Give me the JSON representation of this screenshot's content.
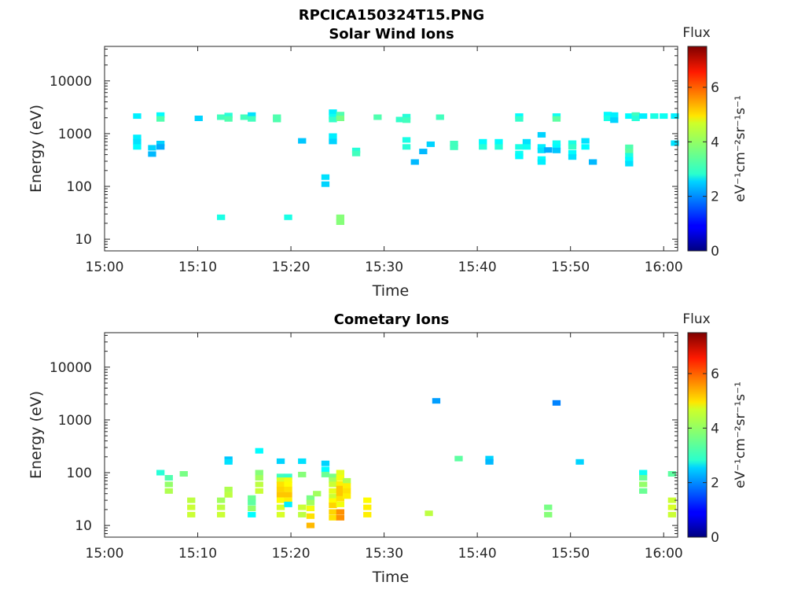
{
  "chart_data": {
    "figure_title": "RPCICA150324T15.PNG",
    "colormap": "jet",
    "panels": [
      {
        "type": "heatmap",
        "title": "Solar Wind Ions",
        "xlabel": "Time",
        "ylabel": "Energy (eV)",
        "x_unit": "minutes after 15:00",
        "xlim": [
          0,
          61.5
        ],
        "ylim": [
          6,
          45000
        ],
        "y_scale": "log",
        "xticks": [
          0,
          10,
          20,
          30,
          40,
          50,
          60
        ],
        "xtick_labels": [
          "15:00",
          "15:10",
          "15:20",
          "15:30",
          "15:40",
          "15:50",
          "16:00"
        ],
        "yticks": [
          10,
          100,
          1000,
          10000
        ],
        "ytick_labels": [
          "10",
          "100",
          "1000",
          "10000"
        ],
        "colorbar": {
          "title": "Flux",
          "label": "eV⁻¹cm⁻²sr⁻¹s⁻¹",
          "range": [
            0,
            7.5
          ],
          "ticks": [
            0,
            2,
            4,
            6
          ],
          "tick_labels": [
            "0",
            "2",
            "4",
            "6"
          ]
        },
        "cells": [
          [
            3.5,
            2150,
            2.7
          ],
          [
            3.5,
            850,
            2.7
          ],
          [
            3.5,
            700,
            2.6
          ],
          [
            3.5,
            560,
            2.8
          ],
          [
            5.1,
            540,
            2.5
          ],
          [
            5.1,
            410,
            2.3
          ],
          [
            6.0,
            2250,
            2.8
          ],
          [
            6.0,
            1900,
            3.4
          ],
          [
            6.0,
            650,
            2.5
          ],
          [
            6.0,
            560,
            2.2
          ],
          [
            10.1,
            1950,
            2.5
          ],
          [
            12.5,
            2050,
            3.3
          ],
          [
            13.3,
            2200,
            3.1
          ],
          [
            13.3,
            1900,
            3.4
          ],
          [
            12.5,
            26,
            3.0
          ],
          [
            15.0,
            2050,
            3.3
          ],
          [
            15.8,
            2250,
            2.6
          ],
          [
            15.8,
            1900,
            3.3
          ],
          [
            18.5,
            2050,
            3.4
          ],
          [
            18.5,
            1850,
            3.4
          ],
          [
            19.7,
            26,
            3.0
          ],
          [
            21.2,
            730,
            2.4
          ],
          [
            23.7,
            150,
            2.6
          ],
          [
            23.7,
            110,
            2.5
          ],
          [
            24.5,
            2550,
            2.7
          ],
          [
            24.5,
            2100,
            2.9
          ],
          [
            24.5,
            1850,
            3.2
          ],
          [
            24.5,
            900,
            2.7
          ],
          [
            24.5,
            710,
            2.5
          ],
          [
            25.3,
            2300,
            3.4
          ],
          [
            25.3,
            1950,
            3.7
          ],
          [
            25.3,
            26,
            3.8
          ],
          [
            25.3,
            21,
            3.8
          ],
          [
            27.0,
            480,
            3.1
          ],
          [
            27.0,
            420,
            3.3
          ],
          [
            29.3,
            2050,
            3.4
          ],
          [
            31.7,
            1850,
            3.2
          ],
          [
            32.4,
            2100,
            3.1
          ],
          [
            32.4,
            1800,
            3.3
          ],
          [
            32.4,
            760,
            3.0
          ],
          [
            32.4,
            560,
            3.1
          ],
          [
            33.3,
            290,
            2.3
          ],
          [
            34.2,
            460,
            2.3
          ],
          [
            35.0,
            630,
            2.5
          ],
          [
            36.0,
            2050,
            3.3
          ],
          [
            37.5,
            650,
            3.3
          ],
          [
            37.5,
            550,
            3.3
          ],
          [
            40.6,
            700,
            2.8
          ],
          [
            40.6,
            560,
            3.1
          ],
          [
            42.3,
            700,
            2.8
          ],
          [
            42.3,
            560,
            3.1
          ],
          [
            44.5,
            2150,
            2.8
          ],
          [
            44.5,
            1900,
            3.2
          ],
          [
            44.5,
            560,
            3.0
          ],
          [
            44.5,
            420,
            2.9
          ],
          [
            44.5,
            370,
            2.8
          ],
          [
            45.3,
            700,
            2.6
          ],
          [
            45.3,
            560,
            2.9
          ],
          [
            46.9,
            950,
            2.5
          ],
          [
            46.9,
            560,
            2.7
          ],
          [
            46.9,
            480,
            2.6
          ],
          [
            46.9,
            330,
            2.8
          ],
          [
            46.9,
            290,
            2.7
          ],
          [
            47.6,
            490,
            2.2
          ],
          [
            48.5,
            2150,
            2.9
          ],
          [
            48.5,
            1900,
            3.5
          ],
          [
            48.5,
            660,
            2.9
          ],
          [
            48.5,
            560,
            2.8
          ],
          [
            48.5,
            480,
            2.4
          ],
          [
            50.2,
            660,
            3.0
          ],
          [
            50.2,
            560,
            3.2
          ],
          [
            50.2,
            430,
            2.8
          ],
          [
            50.2,
            360,
            2.6
          ],
          [
            51.6,
            730,
            2.6
          ],
          [
            51.6,
            560,
            2.8
          ],
          [
            52.4,
            290,
            2.3
          ],
          [
            54.0,
            2300,
            2.8
          ],
          [
            54.0,
            1950,
            3.0
          ],
          [
            54.7,
            2250,
            2.7
          ],
          [
            54.7,
            1800,
            2.5
          ],
          [
            56.3,
            2150,
            2.8
          ],
          [
            56.3,
            550,
            3.4
          ],
          [
            56.3,
            460,
            3.5
          ],
          [
            56.3,
            380,
            3.0
          ],
          [
            56.3,
            320,
            2.8
          ],
          [
            56.3,
            270,
            2.6
          ],
          [
            57.0,
            2250,
            3.3
          ],
          [
            57.0,
            1950,
            3.1
          ],
          [
            57.8,
            2150,
            2.7
          ],
          [
            59.0,
            2150,
            3.0
          ],
          [
            60.0,
            2150,
            2.9
          ],
          [
            61.2,
            2150,
            2.7
          ],
          [
            61.2,
            660,
            2.6
          ]
        ]
      },
      {
        "type": "heatmap",
        "title": "Cometary Ions",
        "xlabel": "Time",
        "ylabel": "Energy (eV)",
        "x_unit": "minutes after 15:00",
        "xlim": [
          0,
          61.5
        ],
        "ylim": [
          6,
          45000
        ],
        "y_scale": "log",
        "xticks": [
          0,
          10,
          20,
          30,
          40,
          50,
          60
        ],
        "xtick_labels": [
          "15:00",
          "15:10",
          "15:20",
          "15:30",
          "15:40",
          "15:50",
          "16:00"
        ],
        "yticks": [
          10,
          100,
          1000,
          10000
        ],
        "ytick_labels": [
          "10",
          "100",
          "1000",
          "10000"
        ],
        "colorbar": {
          "title": "Flux",
          "label": "eV⁻¹cm⁻²sr⁻¹s⁻¹",
          "range": [
            0,
            7.5
          ],
          "ticks": [
            0,
            2,
            4,
            6
          ],
          "tick_labels": [
            "0",
            "2",
            "4",
            "6"
          ]
        },
        "cells": [
          [
            6.0,
            100,
            3.1
          ],
          [
            6.9,
            80,
            3.4
          ],
          [
            6.9,
            60,
            3.9
          ],
          [
            6.9,
            45,
            4.1
          ],
          [
            8.5,
            95,
            3.7
          ],
          [
            9.3,
            30,
            4.2
          ],
          [
            9.3,
            22,
            4.3
          ],
          [
            9.3,
            16,
            4.3
          ],
          [
            12.5,
            30,
            4.0
          ],
          [
            12.5,
            22,
            4.2
          ],
          [
            12.5,
            16,
            4.3
          ],
          [
            13.3,
            180,
            2.4
          ],
          [
            13.3,
            160,
            2.6
          ],
          [
            13.3,
            48,
            4.1
          ],
          [
            13.3,
            38,
            4.2
          ],
          [
            15.8,
            33,
            3.6
          ],
          [
            15.8,
            27,
            3.5
          ],
          [
            15.8,
            21,
            3.9
          ],
          [
            15.8,
            16,
            2.8
          ],
          [
            16.6,
            260,
            2.8
          ],
          [
            16.6,
            100,
            3.8
          ],
          [
            16.6,
            80,
            4.0
          ],
          [
            16.6,
            60,
            4.2
          ],
          [
            16.6,
            45,
            4.3
          ],
          [
            18.9,
            165,
            2.5
          ],
          [
            18.9,
            85,
            3.3
          ],
          [
            18.9,
            72,
            4.4
          ],
          [
            18.9,
            60,
            4.9
          ],
          [
            18.9,
            48,
            5.0
          ],
          [
            18.9,
            38,
            5.1
          ],
          [
            18.9,
            30,
            4.7
          ],
          [
            18.9,
            22,
            4.4
          ],
          [
            18.9,
            16,
            4.4
          ],
          [
            19.7,
            85,
            3.2
          ],
          [
            19.7,
            72,
            4.6
          ],
          [
            19.7,
            60,
            4.7
          ],
          [
            19.7,
            48,
            4.9
          ],
          [
            19.7,
            38,
            5.1
          ],
          [
            19.7,
            30,
            4.8
          ],
          [
            19.7,
            25,
            2.7
          ],
          [
            21.2,
            165,
            2.6
          ],
          [
            21.2,
            92,
            3.8
          ],
          [
            21.2,
            22,
            4.3
          ],
          [
            21.2,
            16,
            4.2
          ],
          [
            22.1,
            33,
            3.7
          ],
          [
            22.1,
            27,
            4.0
          ],
          [
            22.1,
            21,
            4.6
          ],
          [
            22.1,
            15,
            4.9
          ],
          [
            22.1,
            10,
            5.2
          ],
          [
            22.8,
            40,
            4.0
          ],
          [
            23.7,
            150,
            2.5
          ],
          [
            23.7,
            115,
            2.8
          ],
          [
            23.7,
            92,
            3.6
          ],
          [
            24.5,
            85,
            3.7
          ],
          [
            24.5,
            72,
            4.0
          ],
          [
            24.5,
            60,
            4.3
          ],
          [
            24.5,
            45,
            4.5
          ],
          [
            24.5,
            35,
            4.3
          ],
          [
            24.5,
            29,
            4.7
          ],
          [
            24.5,
            24,
            5.0
          ],
          [
            24.5,
            18,
            5.0
          ],
          [
            24.5,
            14,
            4.9
          ],
          [
            25.3,
            100,
            4.5
          ],
          [
            25.3,
            80,
            4.6
          ],
          [
            25.3,
            62,
            4.8
          ],
          [
            25.3,
            50,
            5.1
          ],
          [
            25.3,
            40,
            5.1
          ],
          [
            25.3,
            32,
            4.9
          ],
          [
            25.3,
            25,
            4.6
          ],
          [
            25.3,
            18,
            5.5
          ],
          [
            25.3,
            14,
            5.5
          ],
          [
            26.0,
            70,
            4.1
          ],
          [
            26.0,
            56,
            4.8
          ],
          [
            26.0,
            45,
            4.9
          ],
          [
            26.0,
            36,
            4.8
          ],
          [
            28.2,
            30,
            4.7
          ],
          [
            28.2,
            22,
            4.8
          ],
          [
            28.2,
            16,
            4.8
          ],
          [
            34.8,
            17,
            4.2
          ],
          [
            35.6,
            2300,
            2.1
          ],
          [
            38.0,
            185,
            3.5
          ],
          [
            41.3,
            185,
            2.5
          ],
          [
            41.3,
            160,
            2.3
          ],
          [
            47.6,
            22,
            3.7
          ],
          [
            47.6,
            16,
            3.8
          ],
          [
            48.5,
            2100,
            1.9
          ],
          [
            51.0,
            160,
            2.5
          ],
          [
            57.8,
            100,
            2.9
          ],
          [
            57.8,
            80,
            3.6
          ],
          [
            57.8,
            60,
            3.9
          ],
          [
            57.8,
            45,
            3.6
          ],
          [
            60.9,
            95,
            3.5
          ],
          [
            60.9,
            30,
            4.3
          ],
          [
            60.9,
            22,
            4.4
          ],
          [
            60.9,
            16,
            4.3
          ]
        ]
      }
    ]
  }
}
